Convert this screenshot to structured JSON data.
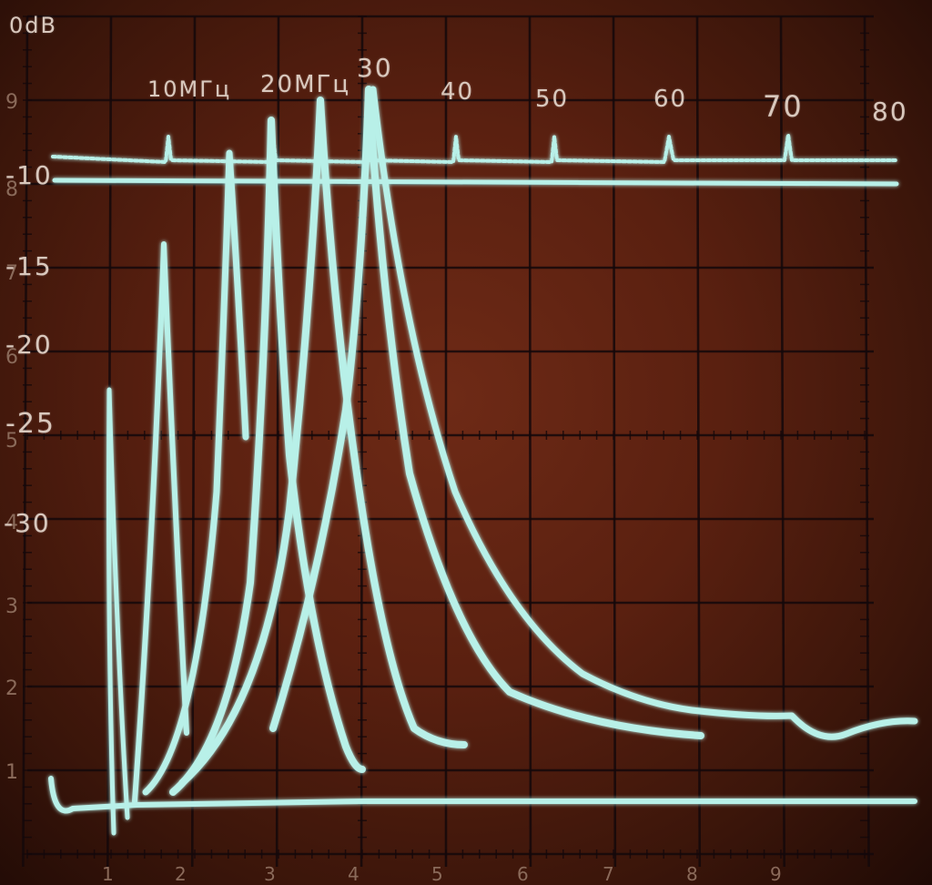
{
  "colors": {
    "screen": "#5a2010",
    "trace": "#b8f0e8",
    "grid": "#14080a",
    "ink": "#d9c8bd"
  },
  "annotations": {
    "zero_db": "0dB",
    "minus10": "-10",
    "minus15": "-15",
    "minus20": "-20",
    "minus25": "-25",
    "minus30": "-30",
    "f10": "10MГц",
    "f20": "20MГц",
    "f30": "30",
    "f40": "40",
    "f50": "50",
    "f60": "60",
    "f70": "70",
    "f80": "80"
  },
  "graticule": {
    "y_numbers": [
      "9",
      "8",
      "7",
      "6",
      "5",
      "4",
      "3",
      "2",
      "1"
    ],
    "x_numbers": [
      "1",
      "2",
      "3",
      "4",
      "5",
      "6",
      "7",
      "8",
      "9"
    ]
  }
}
